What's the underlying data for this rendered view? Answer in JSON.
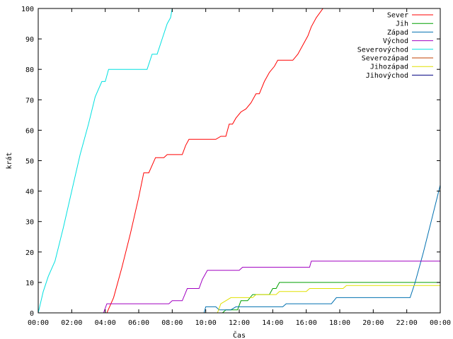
{
  "chart_data": {
    "type": "line",
    "title": "",
    "xlabel": "Čas",
    "ylabel": "krát",
    "xlim": [
      0,
      24
    ],
    "ylim": [
      0,
      100
    ],
    "grid": false,
    "legend_position": "top-right",
    "x_ticks": [
      {
        "v": 0,
        "label": "00:00"
      },
      {
        "v": 2,
        "label": "02:00"
      },
      {
        "v": 4,
        "label": "04:00"
      },
      {
        "v": 6,
        "label": "06:00"
      },
      {
        "v": 8,
        "label": "08:00"
      },
      {
        "v": 10,
        "label": "10:00"
      },
      {
        "v": 12,
        "label": "12:00"
      },
      {
        "v": 14,
        "label": "14:00"
      },
      {
        "v": 16,
        "label": "16:00"
      },
      {
        "v": 18,
        "label": "18:00"
      },
      {
        "v": 20,
        "label": "20:00"
      },
      {
        "v": 22,
        "label": "22:00"
      },
      {
        "v": 24,
        "label": "00:00"
      }
    ],
    "y_ticks": [
      0,
      10,
      20,
      30,
      40,
      50,
      60,
      70,
      80,
      90,
      100
    ],
    "series": [
      {
        "name": "Sever",
        "color": "#ff0000",
        "points": [
          [
            4.1,
            0
          ],
          [
            4.5,
            5
          ],
          [
            5.0,
            15
          ],
          [
            5.5,
            26
          ],
          [
            6.0,
            38
          ],
          [
            6.3,
            46
          ],
          [
            6.6,
            46
          ],
          [
            7.0,
            51
          ],
          [
            7.5,
            51
          ],
          [
            7.7,
            52
          ],
          [
            8.6,
            52
          ],
          [
            8.8,
            55
          ],
          [
            9.0,
            57
          ],
          [
            10.6,
            57
          ],
          [
            10.9,
            58
          ],
          [
            11.2,
            58
          ],
          [
            11.4,
            62
          ],
          [
            11.6,
            62
          ],
          [
            11.8,
            64
          ],
          [
            12.1,
            66
          ],
          [
            12.4,
            67
          ],
          [
            12.7,
            69
          ],
          [
            13.0,
            72
          ],
          [
            13.2,
            72
          ],
          [
            13.5,
            76
          ],
          [
            13.8,
            79
          ],
          [
            14.1,
            81
          ],
          [
            14.3,
            83
          ],
          [
            15.2,
            83
          ],
          [
            15.5,
            85
          ],
          [
            15.8,
            88
          ],
          [
            16.1,
            91
          ],
          [
            16.3,
            94
          ],
          [
            16.6,
            97
          ],
          [
            17.0,
            100
          ]
        ]
      },
      {
        "name": "Jih",
        "color": "#00a000",
        "points": [
          [
            11.0,
            0
          ],
          [
            11.2,
            1
          ],
          [
            11.9,
            1
          ],
          [
            12.1,
            4
          ],
          [
            12.5,
            4
          ],
          [
            12.8,
            6
          ],
          [
            13.8,
            6
          ],
          [
            14.0,
            8
          ],
          [
            14.2,
            8
          ],
          [
            14.4,
            10
          ],
          [
            24.0,
            10
          ]
        ]
      },
      {
        "name": "Západ",
        "color": "#0070b0",
        "points": [
          [
            9.9,
            0
          ],
          [
            10.0,
            2
          ],
          [
            10.6,
            2
          ],
          [
            10.8,
            1
          ],
          [
            11.5,
            1
          ],
          [
            11.8,
            2
          ],
          [
            14.6,
            2
          ],
          [
            14.8,
            3
          ],
          [
            17.5,
            3
          ],
          [
            17.8,
            5
          ],
          [
            22.2,
            5
          ],
          [
            22.5,
            10
          ],
          [
            23.0,
            20
          ],
          [
            23.5,
            31
          ],
          [
            24.0,
            42
          ]
        ]
      },
      {
        "name": "Východ",
        "color": "#a000c0",
        "points": [
          [
            3.9,
            0
          ],
          [
            4.1,
            3
          ],
          [
            7.8,
            3
          ],
          [
            8.0,
            4
          ],
          [
            8.6,
            4
          ],
          [
            8.9,
            8
          ],
          [
            9.6,
            8
          ],
          [
            9.8,
            11
          ],
          [
            10.1,
            14
          ],
          [
            12.0,
            14
          ],
          [
            12.2,
            15
          ],
          [
            16.2,
            15
          ],
          [
            16.3,
            17
          ],
          [
            24.0,
            17
          ]
        ]
      },
      {
        "name": "Severovýchod",
        "color": "#00e0e0",
        "points": [
          [
            0,
            0
          ],
          [
            0.3,
            7
          ],
          [
            0.6,
            12
          ],
          [
            1.0,
            17
          ],
          [
            1.5,
            28
          ],
          [
            2.0,
            40
          ],
          [
            2.5,
            52
          ],
          [
            3.0,
            62
          ],
          [
            3.4,
            71
          ],
          [
            3.8,
            76
          ],
          [
            4.0,
            76
          ],
          [
            4.2,
            80
          ],
          [
            6.5,
            80
          ],
          [
            6.8,
            85
          ],
          [
            7.1,
            85
          ],
          [
            7.4,
            90
          ],
          [
            7.7,
            95
          ],
          [
            7.9,
            97
          ],
          [
            8.0,
            100
          ]
        ]
      },
      {
        "name": "Severozápad",
        "color": "#c04000",
        "points": []
      },
      {
        "name": "Jihozápad",
        "color": "#e0e000",
        "points": [
          [
            10.7,
            0
          ],
          [
            10.9,
            3
          ],
          [
            11.2,
            4
          ],
          [
            11.5,
            5
          ],
          [
            12.8,
            5
          ],
          [
            13.0,
            6
          ],
          [
            14.2,
            6
          ],
          [
            14.4,
            7
          ],
          [
            16.0,
            7
          ],
          [
            16.2,
            8
          ],
          [
            18.2,
            8
          ],
          [
            18.4,
            9
          ],
          [
            24.0,
            9
          ]
        ]
      },
      {
        "name": "Jihovýchod",
        "color": "#000080",
        "points": []
      }
    ]
  }
}
